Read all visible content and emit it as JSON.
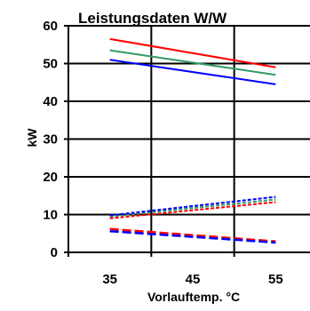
{
  "chart_data": {
    "type": "line",
    "title": "Leistungsdaten W/W",
    "xlabel": "Vorlauftemp. °C",
    "ylabel": "kW",
    "x": [
      35,
      45,
      55
    ],
    "xticks": [
      35,
      45,
      55
    ],
    "xlim": [
      30,
      60
    ],
    "ylim": [
      0,
      60
    ],
    "yticks": [
      0,
      10,
      20,
      30,
      40,
      50,
      60
    ],
    "grid": true,
    "series": [
      {
        "color": "#ff0000",
        "style": "solid",
        "x": [
          35,
          55
        ],
        "y": [
          56.5,
          49.0
        ]
      },
      {
        "color": "#339966",
        "style": "solid",
        "x": [
          35,
          55
        ],
        "y": [
          53.5,
          47.0
        ]
      },
      {
        "color": "#0000ff",
        "style": "solid",
        "x": [
          35,
          55
        ],
        "y": [
          51.0,
          44.5
        ]
      },
      {
        "color": "#339966",
        "style": "dotted",
        "x": [
          35,
          55
        ],
        "y": [
          9.5,
          14.0
        ]
      },
      {
        "color": "#0000ff",
        "style": "dotted",
        "x": [
          35,
          55
        ],
        "y": [
          9.8,
          14.7
        ]
      },
      {
        "color": "#ff0000",
        "style": "dotted",
        "x": [
          35,
          55
        ],
        "y": [
          9.0,
          13.3
        ]
      },
      {
        "color": "#ff0000",
        "style": "dashed",
        "x": [
          35,
          55
        ],
        "y": [
          6.2,
          2.9
        ]
      },
      {
        "color": "#0000ff",
        "style": "dashed",
        "x": [
          35,
          55
        ],
        "y": [
          5.6,
          2.6
        ]
      }
    ]
  }
}
